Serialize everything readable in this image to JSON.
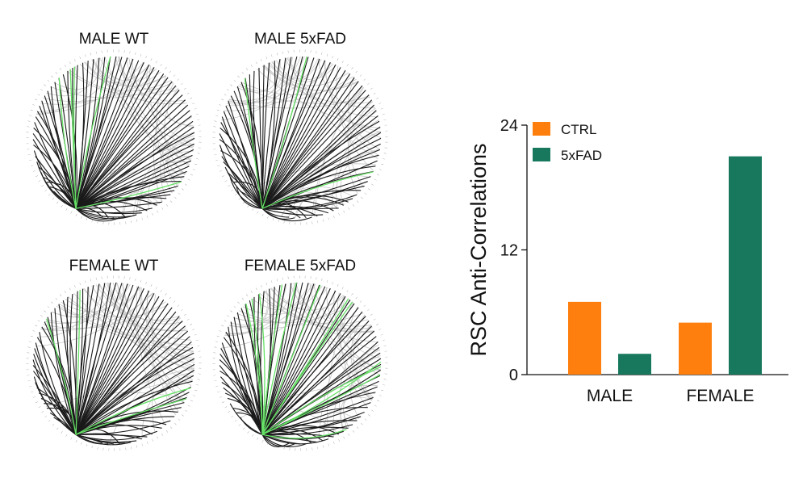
{
  "circos_panels": [
    {
      "title": "MALE WT",
      "highlight_count": 5,
      "seed": 11
    },
    {
      "title": "MALE 5xFAD",
      "highlight_count": 3,
      "seed": 23
    },
    {
      "title": "FEMALE WT",
      "highlight_count": 4,
      "seed": 37
    },
    {
      "title": "FEMALE 5xFAD",
      "highlight_count": 12,
      "seed": 53
    }
  ],
  "colors": {
    "ctrl": "#FF7F0E",
    "fad": "#17785E",
    "edge_dark": "#1a1a1a",
    "edge_light": "#c8c8c8",
    "edge_highlight": "#66E266"
  },
  "chart_data": {
    "type": "bar",
    "title": "",
    "xlabel": "",
    "ylabel": "RSC Anti-Correlations",
    "categories": [
      "MALE",
      "FEMALE"
    ],
    "series": [
      {
        "name": "CTRL",
        "values": [
          7,
          5
        ]
      },
      {
        "name": "5xFAD",
        "values": [
          2,
          21
        ]
      }
    ],
    "ylim": [
      0,
      24
    ],
    "yticks": [
      0,
      12,
      24
    ],
    "legend_position": "top-left",
    "grid": false
  }
}
